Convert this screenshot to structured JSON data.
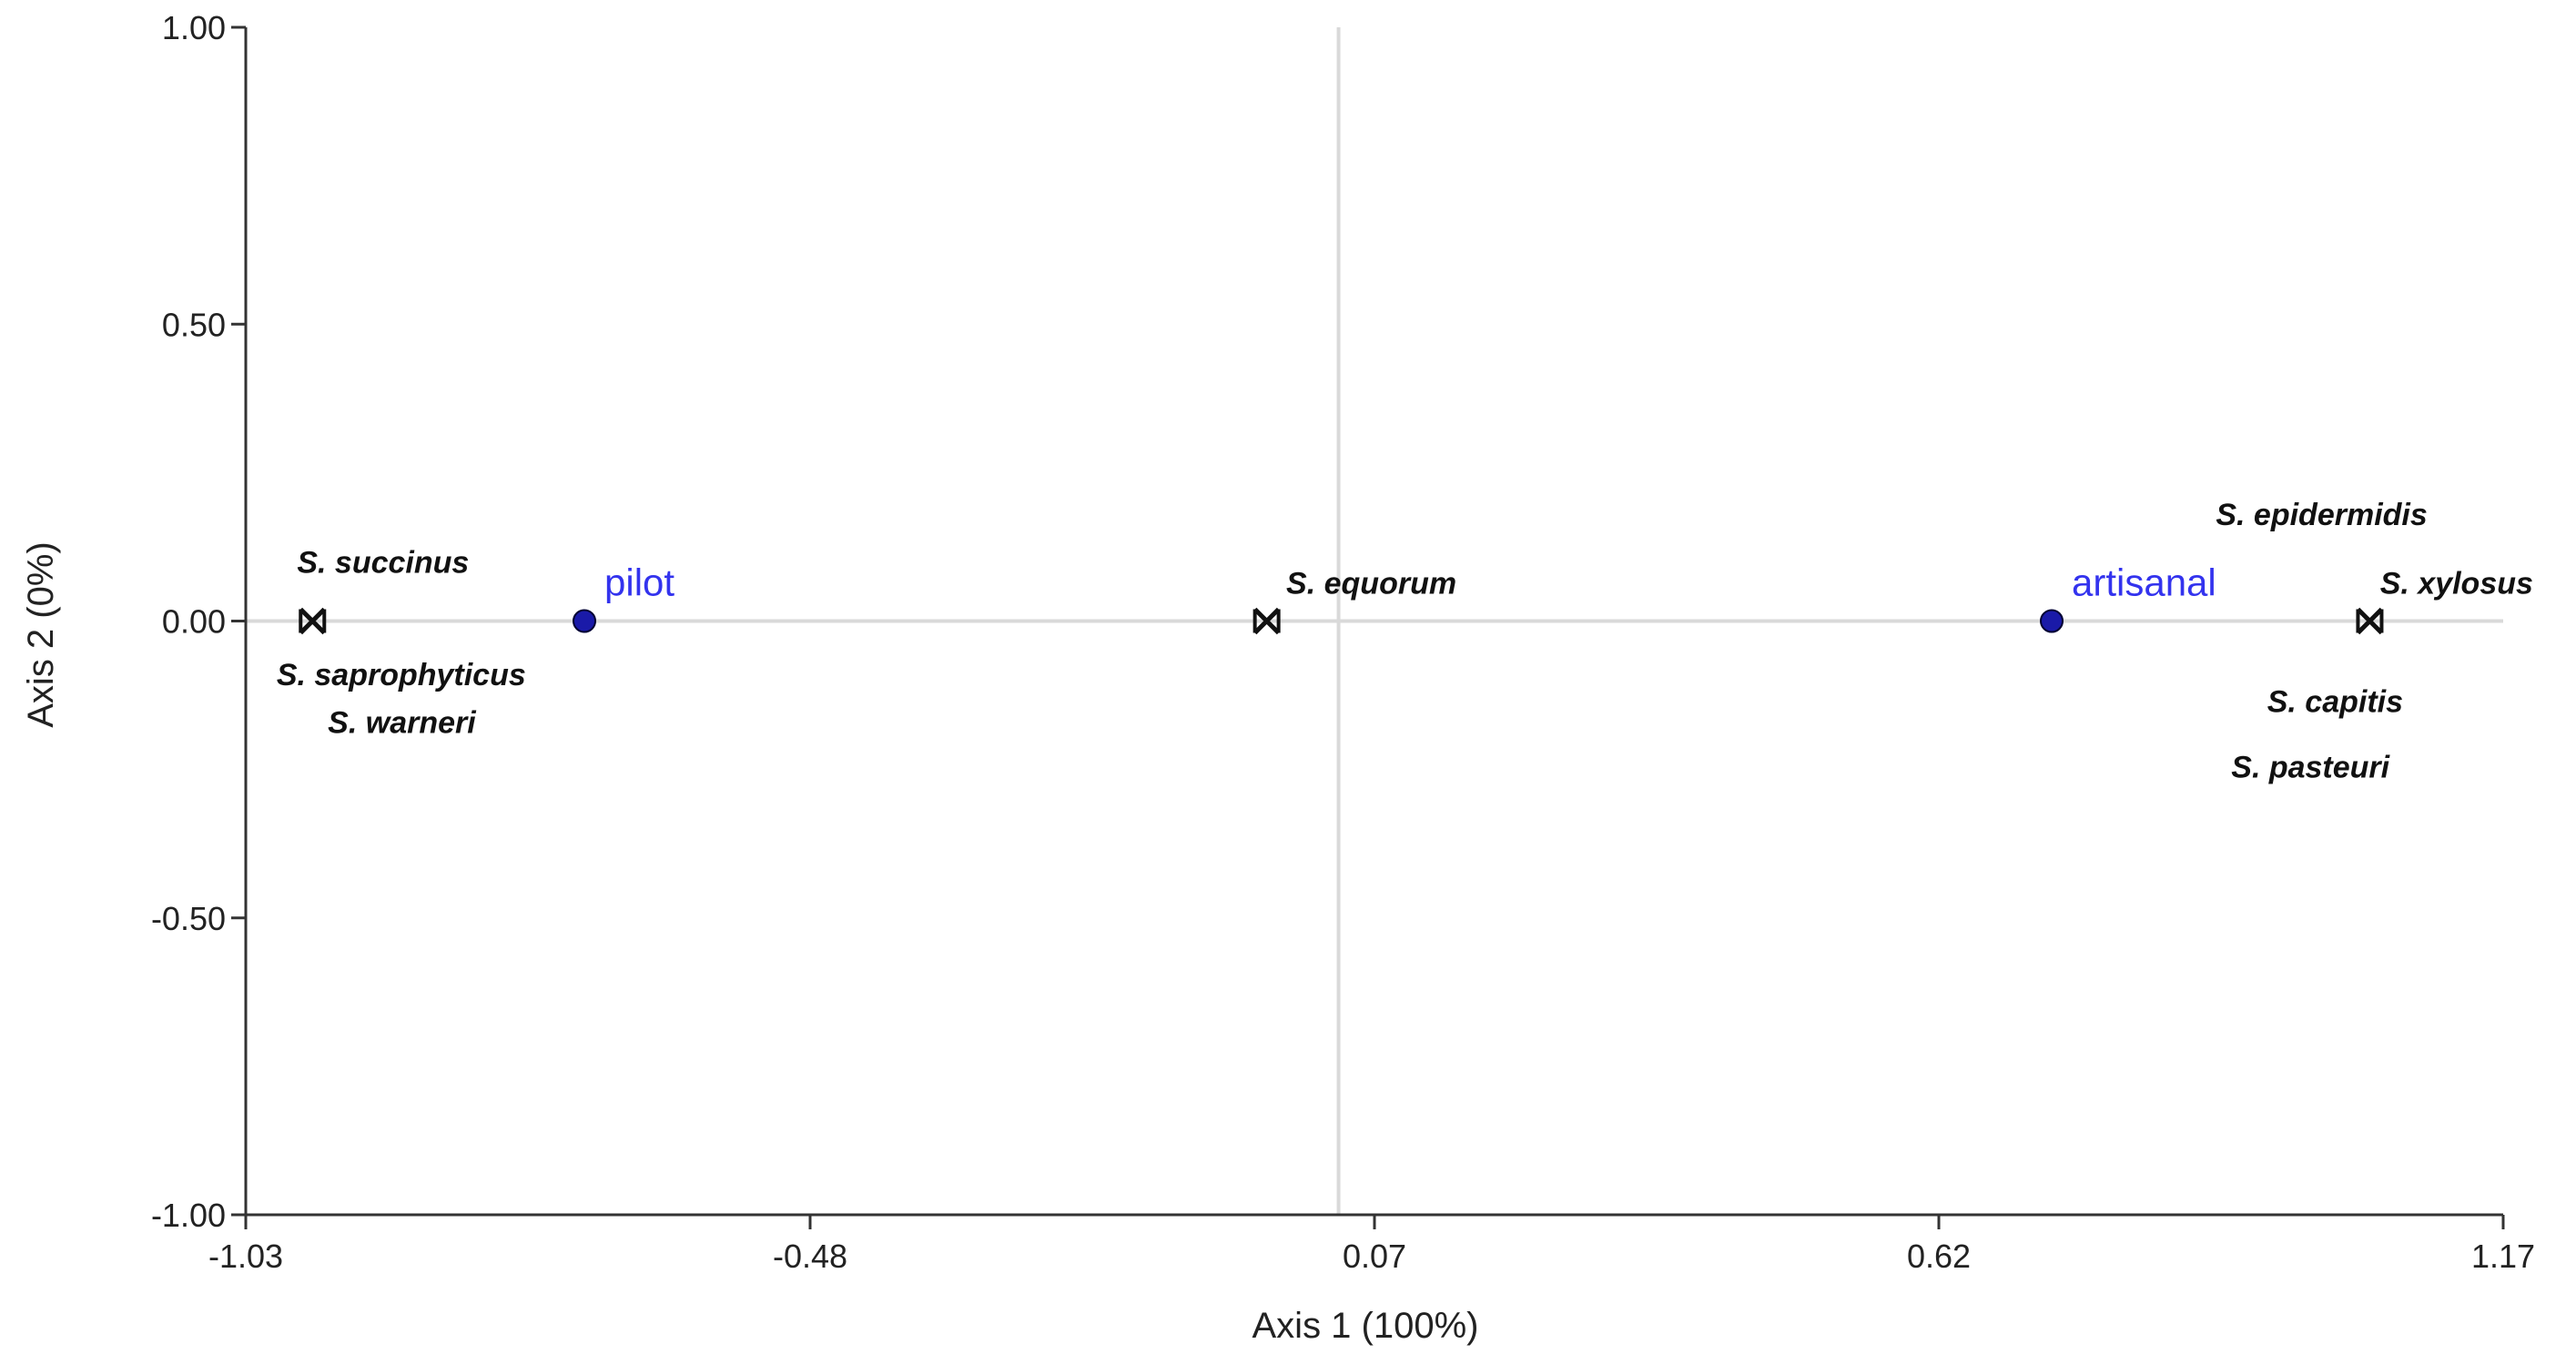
{
  "chart_data": {
    "type": "scatter",
    "xlabel": "Axis  1 (100%)",
    "ylabel": "Axis  2 (0%)",
    "xlim": [
      -1.03,
      1.17
    ],
    "ylim": [
      -1.0,
      1.0
    ],
    "x_ticks": [
      -1.03,
      -0.48,
      0.07,
      0.62,
      1.17
    ],
    "x_tick_labels": [
      "-1.03",
      "-0.48",
      "0.07",
      "0.62",
      "1.17"
    ],
    "y_ticks": [
      1.0,
      0.5,
      0.0,
      -0.5,
      -1.0
    ],
    "y_tick_labels": [
      "1.00",
      "0.50",
      "0.00",
      "-0.50",
      "-1.00"
    ],
    "grid": false,
    "reference_lines": {
      "x": 0.035,
      "y": 0.0
    },
    "colors": {
      "group": "#1a1aa8",
      "group_label": "#3333ee",
      "species": "#111111",
      "axis": "#333333",
      "reference": "#d9d9d9"
    },
    "groups": [
      {
        "label": "pilot",
        "x": -0.7,
        "y": 0.0
      },
      {
        "label": "artisanal",
        "x": 0.73,
        "y": 0.0
      }
    ],
    "species_points": [
      {
        "x": -0.965,
        "y": 0.0
      },
      {
        "x": -0.035,
        "y": 0.0
      },
      {
        "x": 1.04,
        "y": 0.0
      }
    ],
    "species_labels": [
      {
        "label": "S. succinus",
        "x": -0.98,
        "y": 0.1,
        "anchor": "start"
      },
      {
        "label": "S. saprophyticus",
        "x": -1.0,
        "y": -0.09,
        "anchor": "start"
      },
      {
        "label": "S. warneri",
        "x": -0.95,
        "y": -0.17,
        "anchor": "start"
      },
      {
        "label": "S. equorum",
        "x": -0.016,
        "y": 0.064,
        "anchor": "start"
      },
      {
        "label": "S. epidermidis",
        "x": 0.89,
        "y": 0.18,
        "anchor": "start"
      },
      {
        "label": "S. xylosus",
        "x": 1.05,
        "y": 0.064,
        "anchor": "start"
      },
      {
        "label": "S. capitis",
        "x": 0.94,
        "y": -0.135,
        "anchor": "start"
      },
      {
        "label": "S. pasteuri",
        "x": 0.905,
        "y": -0.245,
        "anchor": "start"
      }
    ]
  }
}
